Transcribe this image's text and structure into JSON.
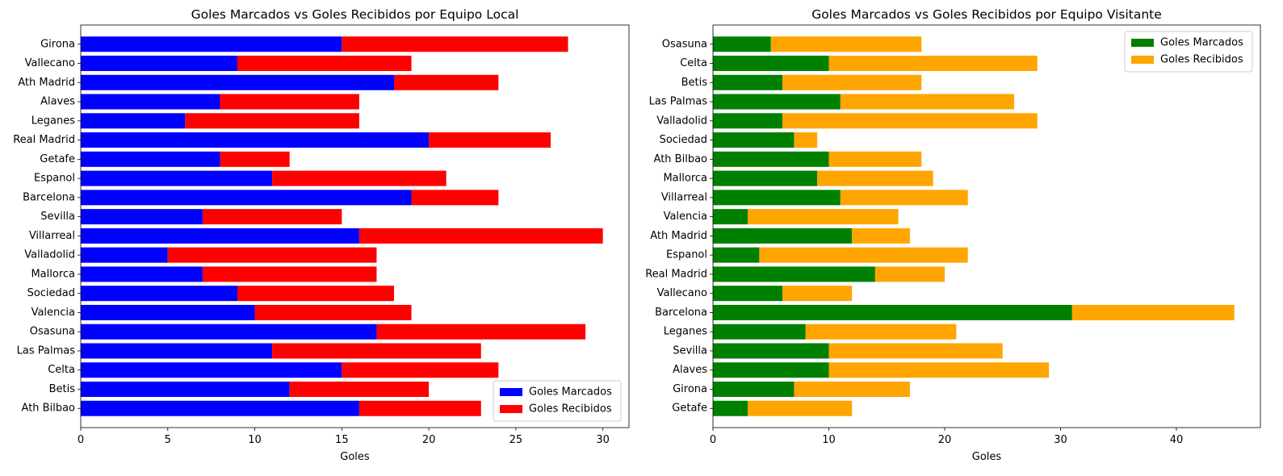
{
  "chart_data": [
    {
      "type": "bar",
      "orientation": "horizontal",
      "stacked": true,
      "title": "Goles Marcados vs Goles Recibidos por Equipo Local",
      "xlabel": "Goles",
      "ylabel": "",
      "xlim": [
        0,
        31.5
      ],
      "xticks": [
        0,
        5,
        10,
        15,
        20,
        25,
        30
      ],
      "legend_position": "lower-right",
      "categories": [
        "Ath Bilbao",
        "Betis",
        "Celta",
        "Las Palmas",
        "Osasuna",
        "Valencia",
        "Sociedad",
        "Mallorca",
        "Valladolid",
        "Villarreal",
        "Sevilla",
        "Barcelona",
        "Espanol",
        "Getafe",
        "Real Madrid",
        "Leganes",
        "Alaves",
        "Ath Madrid",
        "Vallecano",
        "Girona"
      ],
      "series": [
        {
          "name": "Goles Marcados",
          "color": "#0000ff",
          "values": [
            16,
            12,
            15,
            11,
            17,
            10,
            9,
            7,
            5,
            16,
            7,
            19,
            11,
            8,
            20,
            6,
            8,
            18,
            9,
            15
          ]
        },
        {
          "name": "Goles Recibidos",
          "color": "#ff0000",
          "values": [
            7,
            8,
            9,
            12,
            12,
            9,
            9,
            10,
            12,
            14,
            8,
            5,
            10,
            4,
            7,
            10,
            8,
            6,
            10,
            13
          ]
        }
      ]
    },
    {
      "type": "bar",
      "orientation": "horizontal",
      "stacked": true,
      "title": "Goles Marcados vs Goles Recibidos por Equipo Visitante",
      "xlabel": "Goles",
      "ylabel": "",
      "xlim": [
        0,
        47.25
      ],
      "xticks": [
        0,
        10,
        20,
        30,
        40
      ],
      "legend_position": "upper-right",
      "categories": [
        "Getafe",
        "Girona",
        "Alaves",
        "Sevilla",
        "Leganes",
        "Barcelona",
        "Vallecano",
        "Real Madrid",
        "Espanol",
        "Ath Madrid",
        "Valencia",
        "Villarreal",
        "Mallorca",
        "Ath Bilbao",
        "Sociedad",
        "Valladolid",
        "Las Palmas",
        "Betis",
        "Celta",
        "Osasuna"
      ],
      "series": [
        {
          "name": "Goles Marcados",
          "color": "#008000",
          "values": [
            3,
            7,
            10,
            10,
            8,
            31,
            6,
            14,
            4,
            12,
            3,
            11,
            9,
            10,
            7,
            6,
            11,
            6,
            10,
            5
          ]
        },
        {
          "name": "Goles Recibidos",
          "color": "#ffa500",
          "values": [
            9,
            10,
            19,
            15,
            13,
            14,
            6,
            6,
            18,
            5,
            13,
            11,
            10,
            8,
            2,
            22,
            15,
            12,
            18,
            13
          ]
        }
      ]
    }
  ]
}
